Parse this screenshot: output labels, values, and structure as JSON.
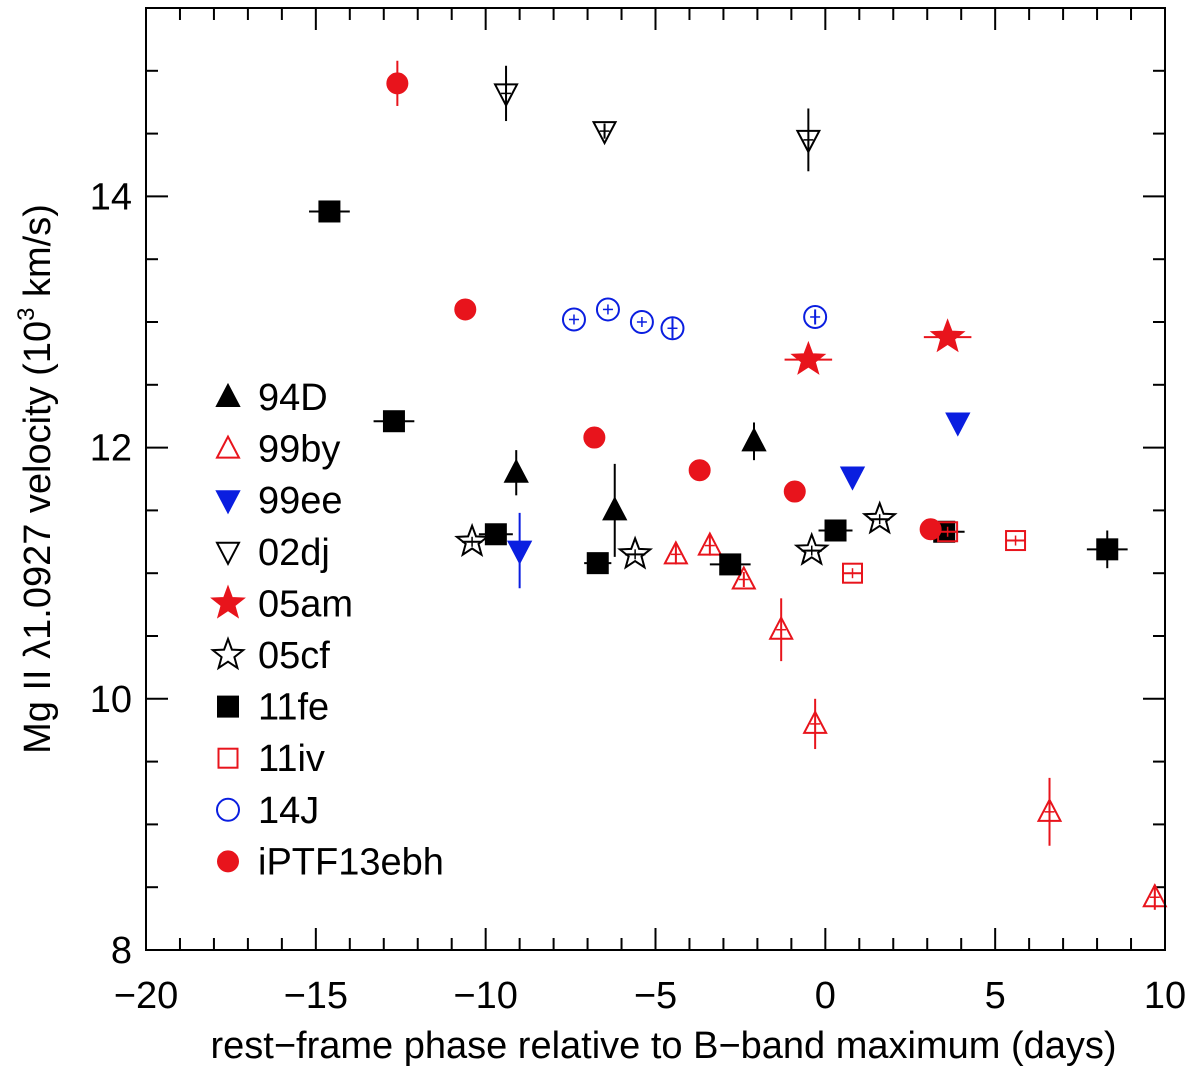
{
  "chart_data": {
    "type": "scatter",
    "xlabel": "rest−frame phase relative to B−band maximum (days)",
    "ylabel": "Mg II λ1.0927 velocity (10³ km/s)",
    "ylabel_parts": {
      "pre": "Mg II ",
      "lambda": "λ",
      "mid": "1.0927 velocity (10",
      "sup": "3",
      "post": " km/s)"
    },
    "xlim": [
      -20,
      10
    ],
    "ylim": [
      8,
      15.5
    ],
    "x_ticks": [
      -20,
      -15,
      -10,
      -5,
      0,
      5,
      10
    ],
    "x_tick_labels": [
      "−20",
      "−15",
      "−10",
      "−5",
      "0",
      "5",
      "10"
    ],
    "y_ticks": [
      8,
      10,
      12,
      14
    ],
    "y_tick_labels": [
      "8",
      "10",
      "12",
      "14"
    ],
    "grid": false,
    "legend_position": "left",
    "series": [
      {
        "name": "94D",
        "marker": "triangle-up",
        "filled": true,
        "color": "#000000",
        "points": [
          {
            "x": -9.1,
            "y": 11.8,
            "yerr": 0.18
          },
          {
            "x": -6.2,
            "y": 11.5,
            "yerr": 0.37
          },
          {
            "x": -2.1,
            "y": 12.05,
            "yerr": 0.15
          }
        ]
      },
      {
        "name": "99by",
        "marker": "triangle-up",
        "filled": false,
        "color": "#e8141c",
        "points": [
          {
            "x": -4.4,
            "y": 11.15,
            "yerr": 0.08
          },
          {
            "x": -3.4,
            "y": 11.22,
            "yerr": 0.08
          },
          {
            "x": -2.4,
            "y": 10.95,
            "yerr": 0.06
          },
          {
            "x": -1.3,
            "y": 10.55,
            "yerr": 0.25
          },
          {
            "x": -0.3,
            "y": 9.8,
            "yerr": 0.2
          },
          {
            "x": 6.6,
            "y": 9.1,
            "yerr": 0.27
          },
          {
            "x": 9.7,
            "y": 8.42,
            "yerr": 0.1
          }
        ]
      },
      {
        "name": "99ee",
        "marker": "triangle-down",
        "filled": true,
        "color": "#0a1ee0",
        "points": [
          {
            "x": -9.0,
            "y": 11.18,
            "yerr": 0.3
          },
          {
            "x": 0.8,
            "y": 11.77,
            "yerr": 0.06
          },
          {
            "x": 3.9,
            "y": 12.2,
            "yerr": 0.06
          }
        ]
      },
      {
        "name": "02dj",
        "marker": "triangle-down",
        "filled": false,
        "color": "#000000",
        "points": [
          {
            "x": -9.4,
            "y": 14.82,
            "yerr": 0.22
          },
          {
            "x": -6.5,
            "y": 14.52,
            "yerr": 0.06
          },
          {
            "x": -0.5,
            "y": 14.45,
            "yerr": 0.25
          }
        ]
      },
      {
        "name": "05am",
        "marker": "star",
        "filled": true,
        "color": "#e8141c",
        "points": [
          {
            "x": -0.5,
            "y": 12.7,
            "xerr": 0.7
          },
          {
            "x": 3.6,
            "y": 12.88,
            "xerr": 0.7
          }
        ]
      },
      {
        "name": "05cf",
        "marker": "star",
        "filled": false,
        "color": "#000000",
        "points": [
          {
            "x": -10.4,
            "y": 11.25,
            "xerr": 0.3
          },
          {
            "x": -5.6,
            "y": 11.15,
            "xerr": 0.3
          },
          {
            "x": -0.4,
            "y": 11.18,
            "xerr": 0.3
          },
          {
            "x": 1.6,
            "y": 11.43,
            "xerr": 0.3
          }
        ]
      },
      {
        "name": "11fe",
        "marker": "square",
        "filled": true,
        "color": "#000000",
        "points": [
          {
            "x": -14.6,
            "y": 13.88,
            "xerr": 0.6
          },
          {
            "x": -12.7,
            "y": 12.21,
            "xerr": 0.6
          },
          {
            "x": -9.7,
            "y": 11.31,
            "xerr": 0.5
          },
          {
            "x": -6.7,
            "y": 11.08,
            "xerr": 0.4
          },
          {
            "x": -2.8,
            "y": 11.07,
            "xerr": 0.6
          },
          {
            "x": 0.3,
            "y": 11.34,
            "xerr": 0.5
          },
          {
            "x": 3.5,
            "y": 11.33,
            "xerr": 0.6
          },
          {
            "x": 8.3,
            "y": 11.19,
            "xerr": 0.6,
            "yerr": 0.15
          }
        ]
      },
      {
        "name": "11iv",
        "marker": "square",
        "filled": false,
        "color": "#e8141c",
        "points": [
          {
            "x": 0.8,
            "y": 11.0,
            "xerr": 0.3
          },
          {
            "x": 3.6,
            "y": 11.33,
            "xerr": 0.3
          },
          {
            "x": 5.6,
            "y": 11.26,
            "xerr": 0.3
          }
        ]
      },
      {
        "name": "14J",
        "marker": "circle",
        "filled": false,
        "color": "#0a1ee0",
        "points": [
          {
            "x": -7.4,
            "y": 13.02
          },
          {
            "x": -6.4,
            "y": 13.1
          },
          {
            "x": -5.4,
            "y": 13.0
          },
          {
            "x": -4.5,
            "y": 12.95,
            "yerr": 0.08
          },
          {
            "x": -0.3,
            "y": 13.04,
            "yerr": 0.06
          }
        ]
      },
      {
        "name": "iPTF13ebh",
        "marker": "circle",
        "filled": true,
        "color": "#e8141c",
        "points": [
          {
            "x": -12.6,
            "y": 14.9,
            "yerr": 0.18
          },
          {
            "x": -10.6,
            "y": 13.1,
            "yerr": 0.08
          },
          {
            "x": -6.8,
            "y": 12.08
          },
          {
            "x": -3.7,
            "y": 11.82
          },
          {
            "x": -0.9,
            "y": 11.65
          },
          {
            "x": 3.1,
            "y": 11.35
          }
        ]
      }
    ]
  }
}
